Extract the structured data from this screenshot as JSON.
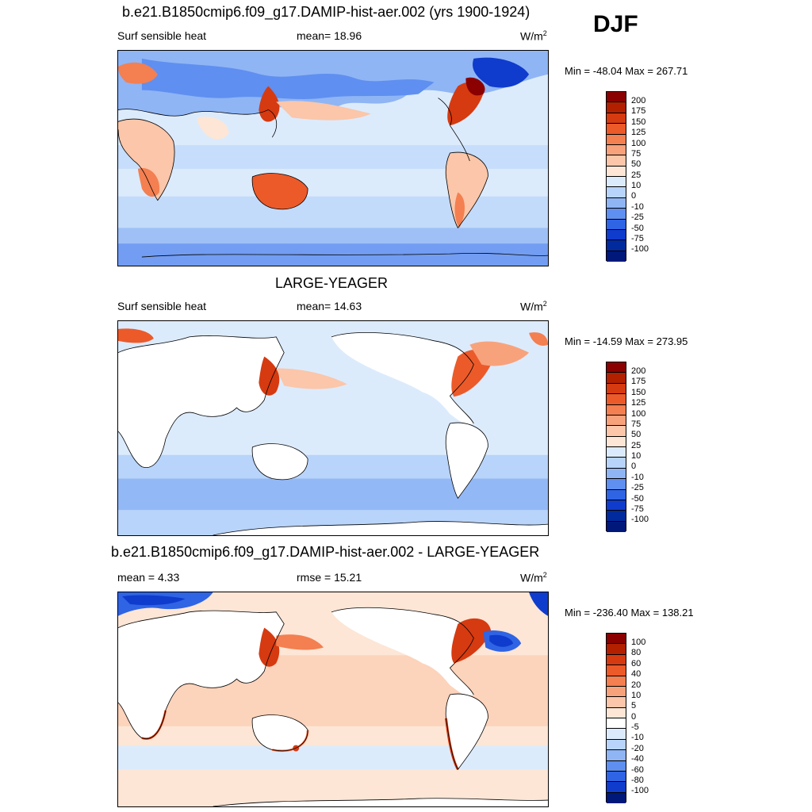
{
  "season": "DJF",
  "panels": [
    {
      "title": "b.e21.B1850cmip6.f09_g17.DAMIP-hist-aer.002 (yrs 1900-1924)",
      "left_label": "Surf sensible heat",
      "center_label": "mean=  18.96",
      "units_base": "W/m",
      "units_exp": "2",
      "minmax": "Min = -48.04 Max = 267.71",
      "colorbar": {
        "labels": [
          "200",
          "175",
          "150",
          "125",
          "100",
          "75",
          "50",
          "25",
          "10",
          "0",
          "-10",
          "-25",
          "-50",
          "-75",
          "-100"
        ],
        "colors": [
          "#8b0000",
          "#b22000",
          "#d63a10",
          "#ec5a2a",
          "#f47f50",
          "#f8a27c",
          "#fbc6a9",
          "#fde6d6",
          "#dcebfc",
          "#b8d4fa",
          "#8fb5f5",
          "#5f8ff0",
          "#2f64e4",
          "#0f3ccc",
          "#002a9e",
          "#00187a"
        ]
      }
    },
    {
      "title": "LARGE-YEAGER",
      "left_label": "Surf sensible heat",
      "center_label": "mean=  14.63",
      "units_base": "W/m",
      "units_exp": "2",
      "minmax": "Min = -14.59 Max = 273.95",
      "colorbar": {
        "labels": [
          "200",
          "175",
          "150",
          "125",
          "100",
          "75",
          "50",
          "25",
          "10",
          "0",
          "-10",
          "-25",
          "-50",
          "-75",
          "-100"
        ],
        "colors": [
          "#8b0000",
          "#b22000",
          "#d63a10",
          "#ec5a2a",
          "#f47f50",
          "#f8a27c",
          "#fbc6a9",
          "#fde6d6",
          "#dcebfc",
          "#b8d4fa",
          "#8fb5f5",
          "#5f8ff0",
          "#2f64e4",
          "#0f3ccc",
          "#002a9e",
          "#00187a"
        ]
      }
    },
    {
      "title": "b.e21.B1850cmip6.f09_g17.DAMIP-hist-aer.002 - LARGE-YEAGER",
      "left_label": "mean =   4.33",
      "center_label": "rmse =  15.21",
      "units_base": "W/m",
      "units_exp": "2",
      "minmax": "Min = -236.40 Max = 138.21",
      "colorbar": {
        "labels": [
          "100",
          "80",
          "60",
          "40",
          "20",
          "10",
          "5",
          "0",
          "-5",
          "-10",
          "-20",
          "-40",
          "-60",
          "-80",
          "-100"
        ],
        "colors": [
          "#8b0000",
          "#b22000",
          "#d63a10",
          "#ec5a2a",
          "#f47f50",
          "#f8a27c",
          "#fbc6a9",
          "#fde6d6",
          "#ffffff",
          "#dcebfc",
          "#b8d4fa",
          "#8fb5f5",
          "#5f8ff0",
          "#2f64e4",
          "#0f3ccc",
          "#00187a"
        ]
      }
    }
  ]
}
